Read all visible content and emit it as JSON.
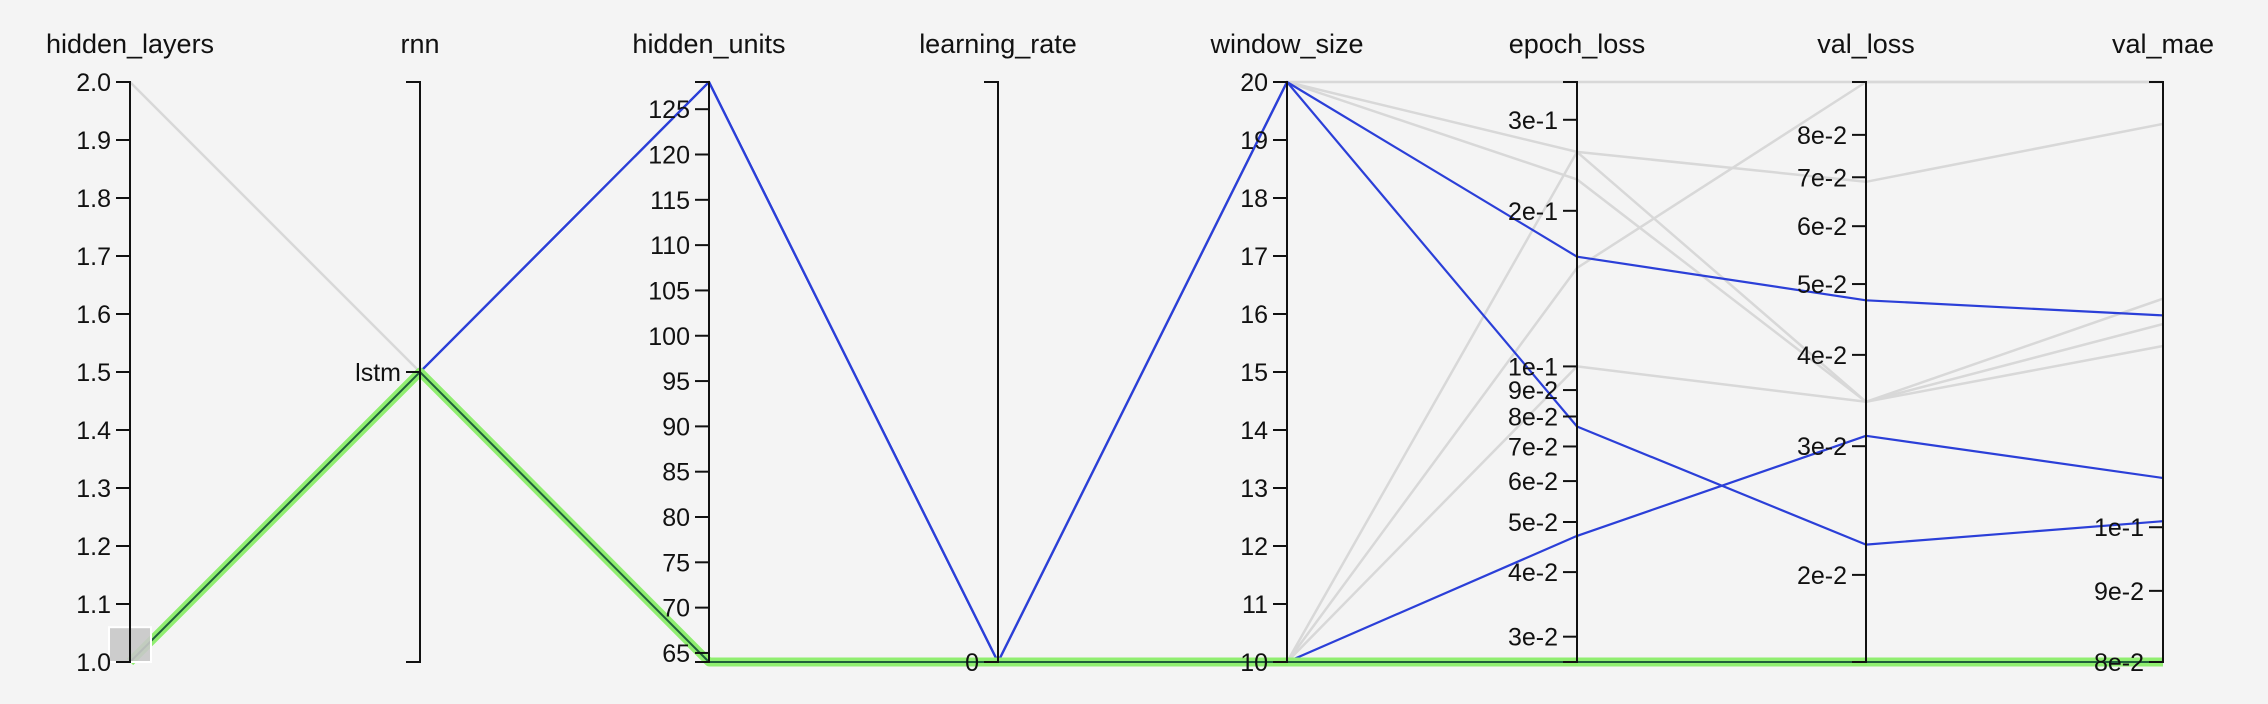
{
  "chart_data": {
    "type": "parallel-coordinates",
    "colors": {
      "background": "#f4f4f4",
      "context": "#d8d8d8",
      "highlight": "#2b3fd8",
      "selected": "#90ee70",
      "selected_core": "#1f5f3a",
      "brush": "#c8c8c8"
    },
    "axes": [
      {
        "name": "hidden_layers",
        "title": "hidden_layers",
        "scale": "linear",
        "domain": [
          1.0,
          2.0
        ],
        "ticks": [
          {
            "v": 1.0,
            "label": "1.0"
          },
          {
            "v": 1.1,
            "label": "1.1"
          },
          {
            "v": 1.2,
            "label": "1.2"
          },
          {
            "v": 1.3,
            "label": "1.3"
          },
          {
            "v": 1.4,
            "label": "1.4"
          },
          {
            "v": 1.5,
            "label": "1.5"
          },
          {
            "v": 1.6,
            "label": "1.6"
          },
          {
            "v": 1.7,
            "label": "1.7"
          },
          {
            "v": 1.8,
            "label": "1.8"
          },
          {
            "v": 1.9,
            "label": "1.9"
          },
          {
            "v": 2.0,
            "label": "2.0"
          }
        ],
        "brush": [
          1.0,
          1.06
        ]
      },
      {
        "name": "rnn",
        "title": "rnn",
        "scale": "categorical",
        "categories": [
          "lstm"
        ],
        "ticks": [
          {
            "v": "lstm",
            "label": "lstm"
          }
        ]
      },
      {
        "name": "hidden_units",
        "title": "hidden_units",
        "scale": "linear",
        "domain": [
          64,
          128
        ],
        "ticks": [
          {
            "v": 65,
            "label": "65"
          },
          {
            "v": 70,
            "label": "70"
          },
          {
            "v": 75,
            "label": "75"
          },
          {
            "v": 80,
            "label": "80"
          },
          {
            "v": 85,
            "label": "85"
          },
          {
            "v": 90,
            "label": "90"
          },
          {
            "v": 95,
            "label": "95"
          },
          {
            "v": 100,
            "label": "100"
          },
          {
            "v": 105,
            "label": "105"
          },
          {
            "v": 110,
            "label": "110"
          },
          {
            "v": 115,
            "label": "115"
          },
          {
            "v": 120,
            "label": "120"
          },
          {
            "v": 125,
            "label": "125"
          }
        ]
      },
      {
        "name": "learning_rate",
        "title": "learning_rate",
        "scale": "linear",
        "domain": [
          0,
          1
        ],
        "ticks": [
          {
            "v": 0,
            "label": "0"
          }
        ]
      },
      {
        "name": "window_size",
        "title": "window_size",
        "scale": "linear",
        "domain": [
          10,
          20
        ],
        "ticks": [
          {
            "v": 10,
            "label": "10"
          },
          {
            "v": 11,
            "label": "11"
          },
          {
            "v": 12,
            "label": "12"
          },
          {
            "v": 13,
            "label": "13"
          },
          {
            "v": 14,
            "label": "14"
          },
          {
            "v": 15,
            "label": "15"
          },
          {
            "v": 16,
            "label": "16"
          },
          {
            "v": 17,
            "label": "17"
          },
          {
            "v": 18,
            "label": "18"
          },
          {
            "v": 19,
            "label": "19"
          },
          {
            "v": 20,
            "label": "20"
          }
        ]
      },
      {
        "name": "epoch_loss",
        "title": "epoch_loss",
        "scale": "log",
        "domain": [
          0.0268,
          0.355
        ],
        "ticks": [
          {
            "v": 0.03,
            "label": "3e-2"
          },
          {
            "v": 0.04,
            "label": "4e-2"
          },
          {
            "v": 0.05,
            "label": "5e-2"
          },
          {
            "v": 0.06,
            "label": "6e-2"
          },
          {
            "v": 0.07,
            "label": "7e-2"
          },
          {
            "v": 0.08,
            "label": "8e-2"
          },
          {
            "v": 0.09,
            "label": "9e-2"
          },
          {
            "v": 0.1,
            "label": "1e-1"
          },
          {
            "v": 0.2,
            "label": "2e-1"
          },
          {
            "v": 0.3,
            "label": "3e-1"
          }
        ]
      },
      {
        "name": "val_loss",
        "title": "val_loss",
        "scale": "log",
        "domain": [
          0.0152,
          0.0945
        ],
        "ticks": [
          {
            "v": 0.02,
            "label": "2e-2"
          },
          {
            "v": 0.03,
            "label": "3e-2"
          },
          {
            "v": 0.04,
            "label": "4e-2"
          },
          {
            "v": 0.05,
            "label": "5e-2"
          },
          {
            "v": 0.06,
            "label": "6e-2"
          },
          {
            "v": 0.07,
            "label": "7e-2"
          },
          {
            "v": 0.08,
            "label": "8e-2"
          }
        ]
      },
      {
        "name": "val_mae",
        "title": "val_mae",
        "scale": "log",
        "domain": [
          0.08,
          0.209
        ],
        "ticks": [
          {
            "v": 0.08,
            "label": "8e-2"
          },
          {
            "v": 0.09,
            "label": "9e-2"
          },
          {
            "v": 0.1,
            "label": "1e-1"
          }
        ]
      }
    ],
    "records": [
      {
        "group": "context",
        "values": [
          2.0,
          "lstm",
          64,
          0,
          10,
          0.0268,
          0.0152,
          0.08
        ]
      },
      {
        "group": "context",
        "values": [
          1.0,
          "lstm",
          64,
          0,
          20,
          0.23,
          0.0345,
          0.135
        ]
      },
      {
        "group": "context",
        "values": [
          1.0,
          "lstm",
          64,
          0,
          20,
          0.26,
          0.0345,
          0.146
        ]
      },
      {
        "group": "context",
        "values": [
          1.0,
          "lstm",
          64,
          0,
          20,
          0.355,
          0.0945,
          0.209
        ]
      },
      {
        "group": "context",
        "values": [
          1.0,
          "lstm",
          64,
          0,
          10,
          0.26,
          0.069,
          0.195
        ]
      },
      {
        "group": "context",
        "values": [
          1.0,
          "lstm",
          64,
          0,
          10,
          0.155,
          0.0945,
          0.209
        ]
      },
      {
        "group": "context",
        "values": [
          1.0,
          "lstm",
          64,
          0,
          10,
          0.1,
          0.0345,
          0.14
        ]
      },
      {
        "group": "highlight",
        "values": [
          1.0,
          "lstm",
          128,
          0,
          20,
          0.163,
          0.0475,
          0.142
        ]
      },
      {
        "group": "highlight",
        "values": [
          1.0,
          "lstm",
          128,
          0,
          20,
          0.0765,
          0.022,
          0.101
        ]
      },
      {
        "group": "highlight",
        "values": [
          1.0,
          "lstm",
          128,
          0,
          10,
          0.047,
          0.031,
          0.1085
        ]
      },
      {
        "group": "selected",
        "values": [
          1.0,
          "lstm",
          64,
          0,
          10,
          0.0268,
          0.0152,
          0.08
        ]
      }
    ]
  }
}
